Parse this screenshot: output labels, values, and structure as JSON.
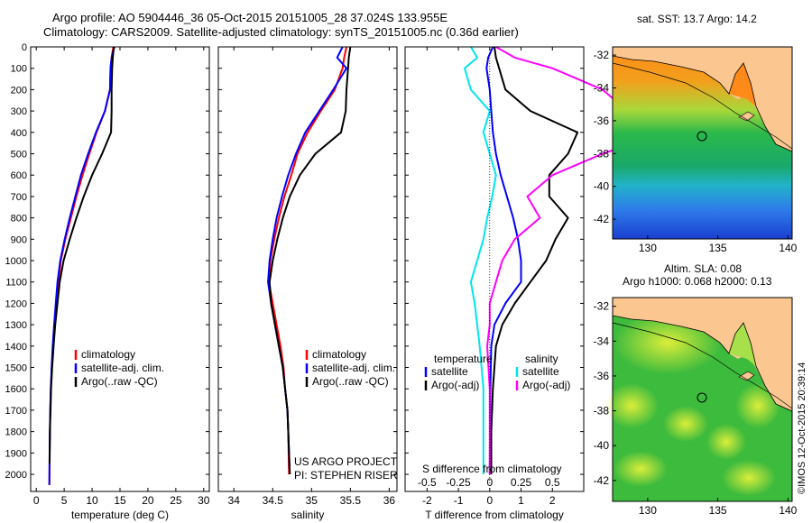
{
  "header": {
    "line1": "Argo profile: AO 5904446_36 05-Oct-2015 20151005_28 37.024S 133.955E",
    "line2": "Climatology: CARS2009. Satellite-adjusted climatology: synTS_20151005.nc (0.36d earlier)"
  },
  "colors": {
    "climatology": "#ff0000",
    "satellite": "#0000ff",
    "argo": "#000000",
    "salinity_satellite": "#00e5ee",
    "salinity_argo": "#ff00ff",
    "land": "#fbc68f"
  },
  "chart_data": [
    {
      "id": "temperature",
      "type": "line",
      "xlabel": "temperature (deg C)",
      "ylabel": "",
      "xlim": [
        -1,
        31
      ],
      "ylim": [
        2080,
        0
      ],
      "xticks": [
        "0",
        "5",
        "10",
        "15",
        "20",
        "25",
        "30"
      ],
      "yticks": [
        "0",
        "100",
        "200",
        "300",
        "400",
        "500",
        "600",
        "700",
        "800",
        "900",
        "1000",
        "1100",
        "1200",
        "1300",
        "1400",
        "1500",
        "1600",
        "1700",
        "1800",
        "1900",
        "2000"
      ],
      "legend": [
        "climatology",
        "satellite-adj. clim.",
        "Argo(..raw -QC)"
      ],
      "series": [
        {
          "name": "climatology",
          "x": [
            13.8,
            13.5,
            13.3,
            13.2,
            12.3,
            10.8,
            9.5,
            8.3,
            7.2,
            6.2,
            5.2,
            4.4,
            4.0,
            3.6,
            3.3,
            3.0,
            2.8,
            2.6,
            2.5,
            2.45,
            2.4,
            2.35
          ],
          "y": [
            0,
            50,
            100,
            200,
            300,
            400,
            500,
            600,
            700,
            800,
            900,
            1000,
            1100,
            1200,
            1300,
            1400,
            1500,
            1600,
            1700,
            1800,
            1900,
            2050
          ]
        },
        {
          "name": "satellite-adj. clim.",
          "x": [
            14.0,
            13.5,
            13.3,
            13.2,
            12.3,
            10.7,
            9.3,
            8.0,
            7.0,
            6.0,
            5.1,
            4.3,
            3.8,
            3.5,
            3.2,
            2.95,
            2.75,
            2.6,
            2.5,
            2.45,
            2.4,
            2.35
          ],
          "y": [
            0,
            50,
            100,
            200,
            300,
            400,
            500,
            600,
            700,
            800,
            900,
            1000,
            1100,
            1200,
            1300,
            1400,
            1500,
            1600,
            1700,
            1800,
            1900,
            2050
          ]
        },
        {
          "name": "Argo(..raw -QC)",
          "x": [
            13.9,
            13.7,
            13.6,
            13.5,
            13.5,
            13.4,
            11.8,
            10.0,
            8.5,
            7.2,
            6.0,
            4.9,
            4.2,
            3.8,
            3.4,
            3.1,
            2.85,
            2.65,
            2.55,
            2.45,
            2.4
          ],
          "y": [
            0,
            50,
            100,
            200,
            300,
            400,
            500,
            600,
            700,
            800,
            900,
            1000,
            1100,
            1200,
            1300,
            1400,
            1500,
            1600,
            1700,
            1800,
            1950
          ]
        }
      ]
    },
    {
      "id": "salinity",
      "type": "line",
      "xlabel": "salinity",
      "xlim": [
        33.8,
        36.1
      ],
      "ylim": [
        2080,
        0
      ],
      "xticks": [
        "34",
        "34.5",
        "35",
        "35.5",
        "36"
      ],
      "legend": [
        "climatology",
        "satellite-adj. clim.",
        "Argo(..raw -QC)"
      ],
      "series": [
        {
          "name": "climatology",
          "x": [
            35.45,
            35.42,
            35.4,
            35.3,
            35.12,
            34.95,
            34.82,
            34.74,
            34.65,
            34.58,
            34.52,
            34.47,
            34.45,
            34.5,
            34.55,
            34.6,
            34.64,
            34.66,
            34.69,
            34.7,
            34.71
          ],
          "y": [
            0,
            50,
            100,
            200,
            300,
            400,
            500,
            600,
            700,
            800,
            900,
            1000,
            1100,
            1200,
            1300,
            1400,
            1500,
            1600,
            1700,
            1800,
            2000
          ]
        },
        {
          "name": "satellite-adj. clim.",
          "x": [
            35.4,
            35.33,
            35.45,
            35.28,
            35.1,
            34.92,
            34.8,
            34.7,
            34.62,
            34.55,
            34.5,
            34.46,
            34.44,
            34.48,
            34.53,
            34.58,
            34.63,
            34.66,
            34.69,
            34.7,
            34.72
          ],
          "y": [
            0,
            50,
            100,
            200,
            300,
            400,
            500,
            600,
            700,
            800,
            900,
            1000,
            1100,
            1200,
            1300,
            1400,
            1500,
            1600,
            1700,
            1800,
            2000
          ]
        },
        {
          "name": "Argo(..raw -QC)",
          "x": [
            35.5,
            35.48,
            35.47,
            35.45,
            35.44,
            35.38,
            35.05,
            34.85,
            34.72,
            34.63,
            34.56,
            34.5,
            34.46,
            34.48,
            34.53,
            34.58,
            34.63,
            34.66,
            34.69,
            34.7,
            34.72
          ],
          "y": [
            0,
            50,
            100,
            200,
            300,
            400,
            500,
            600,
            700,
            800,
            900,
            1000,
            1100,
            1200,
            1300,
            1400,
            1500,
            1600,
            1700,
            1800,
            2000
          ]
        }
      ],
      "annotation": [
        "US ARGO PROJECT",
        "PI: STEPHEN RISER"
      ]
    },
    {
      "id": "differences",
      "type": "line",
      "xlabel": "T difference from climatology",
      "xlabel_top": "S difference from climatology",
      "xlim": [
        -2.7,
        3.0
      ],
      "ylim": [
        2080,
        0
      ],
      "xticks": [
        "-2",
        "-1",
        "0",
        "1",
        "2"
      ],
      "xticks_top": [
        "-0.5",
        "-0.25",
        "0",
        "0.25",
        "0.5"
      ],
      "legend_titles": [
        "temperature",
        "salinity"
      ],
      "legend": [
        "satellite",
        "Argo(-adj)",
        "satellite",
        "Argo(-adj)"
      ],
      "series": [
        {
          "name": "satellite",
          "x": [
            0.1,
            -0.05,
            -0.1,
            0.0,
            0.05,
            0.1,
            0.2,
            0.35,
            0.55,
            0.75,
            0.9,
            1.0,
            1.0,
            0.5,
            0.15,
            0.05,
            0.02,
            0.01,
            0.0
          ],
          "y": [
            0,
            50,
            100,
            200,
            300,
            400,
            500,
            600,
            700,
            800,
            900,
            1000,
            1100,
            1200,
            1300,
            1400,
            1600,
            1800,
            2000
          ]
        },
        {
          "name": "Argo(-adj)",
          "x": [
            0.15,
            0.2,
            0.3,
            0.5,
            1.3,
            2.8,
            2.5,
            1.9,
            1.9,
            2.5,
            2.1,
            1.8,
            1.3,
            0.8,
            0.4,
            0.2,
            0.1,
            0.05,
            0.05
          ],
          "y": [
            0,
            50,
            100,
            200,
            300,
            400,
            500,
            600,
            700,
            800,
            900,
            1000,
            1100,
            1200,
            1300,
            1400,
            1600,
            1800,
            2000
          ]
        },
        {
          "name": "satellite",
          "x": [
            -0.15,
            -0.1,
            -0.2,
            -0.15,
            0.0,
            -0.05,
            0.0,
            0.05,
            0.02,
            -0.02,
            -0.05,
            -0.1,
            -0.15,
            -0.12,
            -0.1,
            -0.08,
            -0.05,
            -0.05,
            -0.05
          ],
          "y": [
            0,
            50,
            100,
            200,
            300,
            400,
            500,
            600,
            700,
            800,
            900,
            1000,
            1100,
            1200,
            1300,
            1400,
            1600,
            1800,
            2000
          ]
        },
        {
          "name": "Argo(-adj)",
          "x": [
            0.05,
            0.2,
            0.5,
            0.9,
            1.1,
            1.4,
            0.9,
            0.5,
            0.3,
            0.4,
            0.2,
            0.1,
            0.05,
            0.0,
            0.0,
            -0.02,
            0.0,
            0.0,
            0.0
          ],
          "y": [
            0,
            50,
            100,
            200,
            300,
            400,
            500,
            600,
            700,
            800,
            900,
            1000,
            1100,
            1200,
            1300,
            1400,
            1600,
            1800,
            2000
          ]
        }
      ]
    }
  ],
  "map_sst": {
    "title": "sat. SST: 13.7 Argo: 14.2",
    "xticks": [
      "130",
      "135",
      "140"
    ],
    "yticks": [
      "-32",
      "-34",
      "-36",
      "-38",
      "-40",
      "-42"
    ]
  },
  "map_sla": {
    "title_line1": "Altim. SLA: 0.08",
    "title_line2": "Argo h1000: 0.068 h2000: 0.13",
    "xticks": [
      "130",
      "135",
      "140"
    ],
    "yticks": [
      "-32",
      "-34",
      "-36",
      "-38",
      "-40",
      "-42"
    ]
  },
  "footer": {
    "credit": "©IMOS 12-Oct-2015 20:39:14"
  }
}
